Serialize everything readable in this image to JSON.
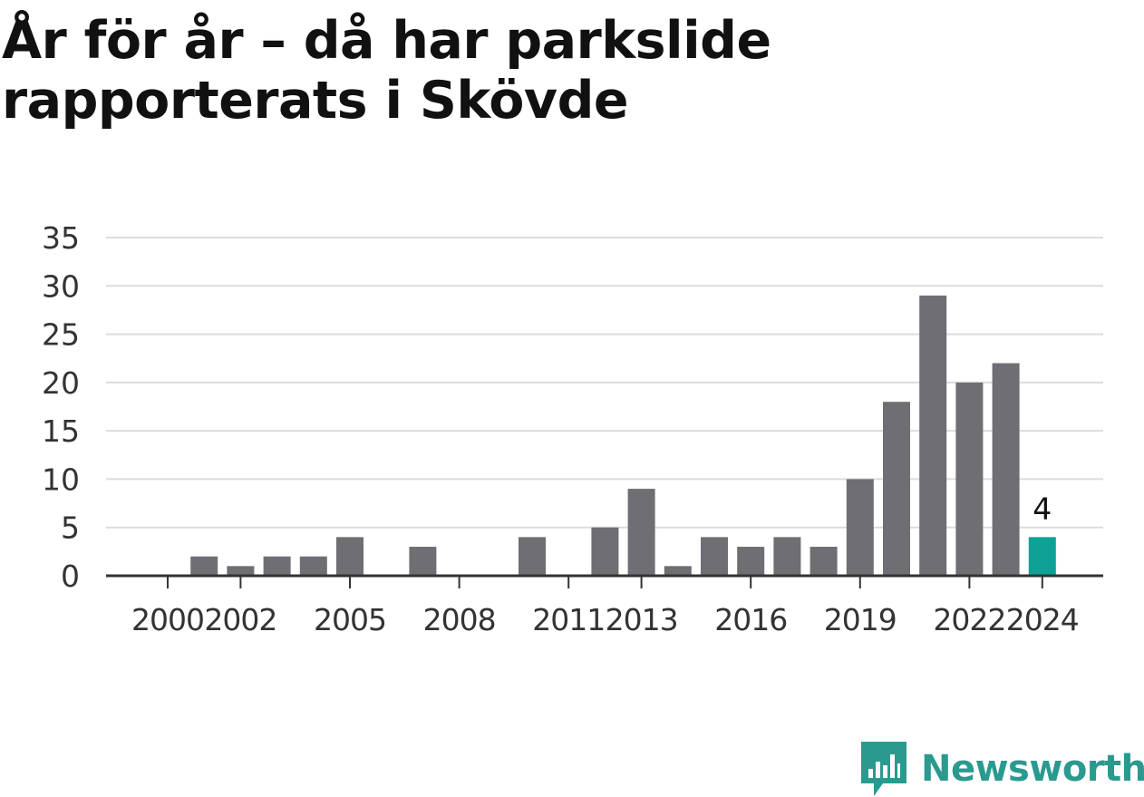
{
  "title": "År för år – då har parkslide rapporterats i Skövde",
  "brand": {
    "name": "Newsworthy",
    "color": "#2a9a8f",
    "icon": "bar-chart-speech-bubble-icon"
  },
  "chart_data": {
    "type": "bar",
    "x": [
      2000,
      2001,
      2002,
      2003,
      2004,
      2005,
      2006,
      2007,
      2008,
      2009,
      2010,
      2011,
      2012,
      2013,
      2014,
      2015,
      2016,
      2017,
      2018,
      2019,
      2020,
      2021,
      2022,
      2023,
      2024
    ],
    "values": [
      0,
      2,
      1,
      2,
      2,
      4,
      0,
      3,
      0,
      0,
      4,
      0,
      5,
      9,
      1,
      4,
      3,
      4,
      3,
      10,
      18,
      29,
      20,
      22,
      4
    ],
    "x_tick_labels": [
      "2000",
      "2002",
      "2005",
      "2008",
      "2011",
      "2013",
      "2016",
      "2019",
      "2022",
      "2024"
    ],
    "y_ticks": [
      0,
      5,
      10,
      15,
      20,
      25,
      30,
      35
    ],
    "ylim": [
      0,
      35
    ],
    "bar_color": "#6f6e73",
    "highlight_color": "#0fa195",
    "highlight": {
      "x": 2024,
      "label": "4"
    },
    "grid": true,
    "xlabel": "",
    "ylabel": ""
  }
}
